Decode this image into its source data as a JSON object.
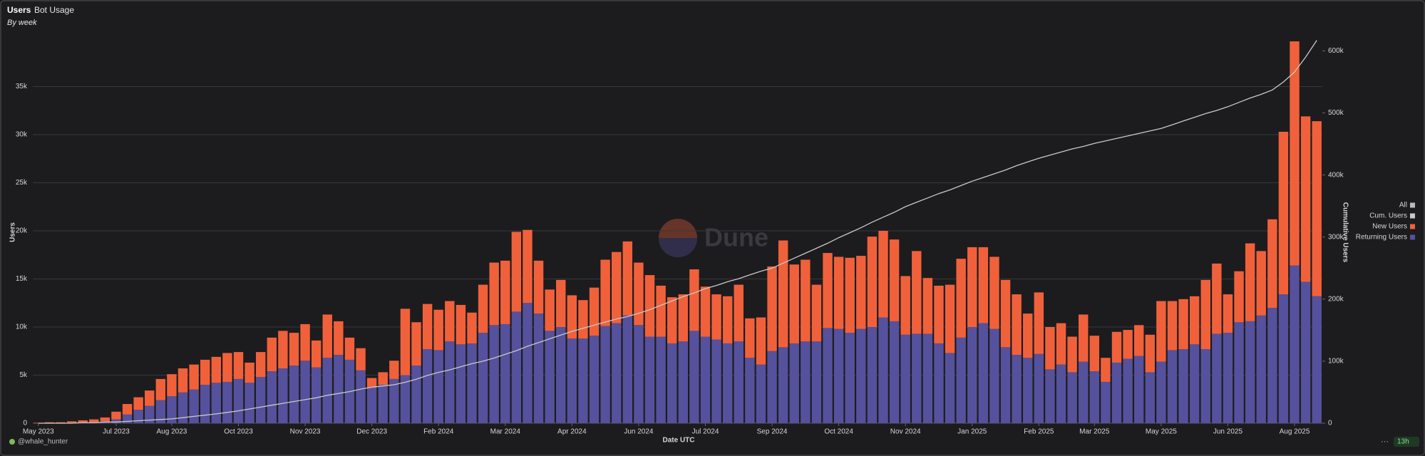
{
  "chart_data": {
    "type": "bar",
    "title": "Users",
    "tab": "Bot Usage",
    "subtitle": "By week",
    "x_label": "Date UTC",
    "y_label": "Users",
    "y2_label": "Cumulative Users",
    "watermark": "Dune",
    "author": "@whale_hunter",
    "age": "13h",
    "legend_all": "All",
    "legend": "right",
    "grid": true,
    "categories": [
      "May 2023",
      null,
      null,
      null,
      null,
      null,
      null,
      "Jul 2023",
      null,
      null,
      null,
      null,
      "Aug 2023",
      null,
      null,
      null,
      null,
      null,
      "Oct 2023",
      null,
      null,
      null,
      null,
      null,
      "Nov 2023",
      null,
      null,
      null,
      null,
      null,
      "Dec 2023",
      null,
      null,
      null,
      null,
      null,
      "Feb 2024",
      null,
      null,
      null,
      null,
      null,
      "Mar 2024",
      null,
      null,
      null,
      null,
      null,
      "Apr 2024",
      null,
      null,
      null,
      null,
      null,
      "Jun 2024",
      null,
      null,
      null,
      null,
      null,
      "Jul 2024",
      null,
      null,
      null,
      null,
      null,
      "Sep 2024",
      null,
      null,
      null,
      null,
      null,
      "Oct 2024",
      null,
      null,
      null,
      null,
      null,
      "Nov 2024",
      null,
      null,
      null,
      null,
      null,
      "Jan 2025",
      null,
      null,
      null,
      null,
      null,
      "Feb 2025",
      null,
      null,
      null,
      null,
      "Mar 2025",
      null,
      null,
      null,
      null,
      null,
      "May 2025",
      null,
      null,
      null,
      null,
      null,
      "Jun 2025",
      null,
      null,
      null,
      null,
      null,
      "Aug 2025",
      null,
      null
    ],
    "series": [
      {
        "name": "Cum. Users",
        "type": "line",
        "axis": "y2",
        "color": "#c9c9c9",
        "values": [
          0,
          0,
          0,
          0,
          1000,
          1000,
          2000,
          2000,
          3000,
          4000,
          5000,
          6000,
          7000,
          9000,
          11000,
          13000,
          15000,
          17500,
          20000,
          23000,
          26000,
          29000,
          32000,
          35000,
          38000,
          41000,
          45000,
          48000,
          51000,
          55000,
          58000,
          60000,
          62000,
          66000,
          71000,
          77000,
          82000,
          86000,
          91000,
          96000,
          100000,
          105000,
          111000,
          117000,
          124000,
          130000,
          136000,
          142000,
          148000,
          153000,
          158000,
          163000,
          168000,
          172000,
          177000,
          183000,
          190000,
          197000,
          204000,
          210000,
          217000,
          222000,
          228000,
          233000,
          239000,
          245000,
          250000,
          258000,
          266000,
          274000,
          282000,
          290000,
          299000,
          307000,
          315000,
          324000,
          332000,
          340000,
          349000,
          356000,
          363000,
          370000,
          376000,
          383000,
          390000,
          396000,
          402000,
          408000,
          415000,
          421000,
          427000,
          432000,
          437000,
          442000,
          446000,
          451000,
          455000,
          459000,
          463000,
          467000,
          471000,
          475000,
          481000,
          487000,
          493000,
          499000,
          504000,
          510000,
          517000,
          524000,
          530000,
          537000,
          550000,
          566000,
          590000,
          617000
        ]
      },
      {
        "name": "New Users",
        "color": "#f0613b",
        "values": [
          50,
          100,
          100,
          150,
          200,
          300,
          400,
          800,
          1100,
          1300,
          1600,
          2200,
          2300,
          2500,
          2600,
          2600,
          2700,
          3000,
          2800,
          2100,
          2600,
          3500,
          3900,
          3400,
          3800,
          2800,
          4500,
          3500,
          2300,
          2300,
          1000,
          1300,
          1900,
          6900,
          4500,
          4700,
          4200,
          4200,
          4100,
          3200,
          5000,
          6500,
          6600,
          8300,
          7600,
          5500,
          4300,
          4900,
          4500,
          4000,
          5000,
          6900,
          7400,
          7700,
          6500,
          6400,
          5300,
          4800,
          4900,
          6400,
          5200,
          4700,
          4900,
          5900,
          4100,
          4900,
          8800,
          11100,
          8200,
          8500,
          5900,
          7800,
          7500,
          7800,
          7600,
          9400,
          9000,
          8500,
          6100,
          8600,
          5800,
          6000,
          7100,
          8200,
          8300,
          7900,
          7500,
          7000,
          6300,
          4600,
          6400,
          4400,
          4300,
          3700,
          4900,
          3700,
          2500,
          3200,
          3000,
          3200,
          3900,
          6300,
          5100,
          5200,
          5000,
          7200,
          7300,
          4000,
          5300,
          8100,
          6700,
          9200,
          16900,
          23300,
          17200,
          18200
        ]
      },
      {
        "name": "Returning Users",
        "color": "#56519c",
        "values": [
          0,
          0,
          0,
          50,
          100,
          100,
          200,
          400,
          900,
          1400,
          1800,
          2400,
          2800,
          3200,
          3500,
          4000,
          4200,
          4300,
          4600,
          4200,
          4800,
          5400,
          5700,
          6000,
          6500,
          5800,
          6800,
          7100,
          6600,
          5500,
          3700,
          4000,
          4600,
          5000,
          6000,
          7700,
          7600,
          8500,
          8200,
          8300,
          9400,
          10200,
          10300,
          11600,
          12500,
          11400,
          9600,
          10000,
          8800,
          8800,
          9100,
          10100,
          10400,
          11200,
          10200,
          9000,
          9000,
          8300,
          8500,
          9600,
          9000,
          8700,
          8300,
          8500,
          6800,
          6100,
          7500,
          7900,
          8300,
          8500,
          8500,
          9900,
          9800,
          9400,
          9800,
          10000,
          11000,
          10600,
          9200,
          9300,
          9300,
          8300,
          7300,
          8900,
          10000,
          10400,
          9800,
          7900,
          7100,
          6800,
          7200,
          5600,
          6100,
          5300,
          6400,
          5400,
          4300,
          6300,
          6700,
          7000,
          5300,
          6400,
          7600,
          7700,
          8200,
          7700,
          9300,
          9400,
          10500,
          10600,
          11200,
          12000,
          13400,
          16400,
          14700,
          13200
        ]
      }
    ],
    "ylim": [
      0,
      40000
    ],
    "yticks": [
      0,
      {
        "value": 5000,
        "label": "5k"
      },
      {
        "value": 10000,
        "label": "10k"
      },
      {
        "value": 15000,
        "label": "15k"
      },
      {
        "value": 20000,
        "label": "20k"
      },
      {
        "value": 25000,
        "label": "25k"
      },
      {
        "value": 30000,
        "label": "30k"
      },
      {
        "value": 35000,
        "label": "35k"
      }
    ],
    "y2lim": [
      0,
      620000
    ],
    "y2ticks": [
      0,
      {
        "value": 100000,
        "label": "100k"
      },
      {
        "value": 200000,
        "label": "200k"
      },
      {
        "value": 300000,
        "label": "300k"
      },
      {
        "value": 400000,
        "label": "400k"
      },
      {
        "value": 500000,
        "label": "500k"
      },
      {
        "value": 600000,
        "label": "600k"
      }
    ]
  }
}
